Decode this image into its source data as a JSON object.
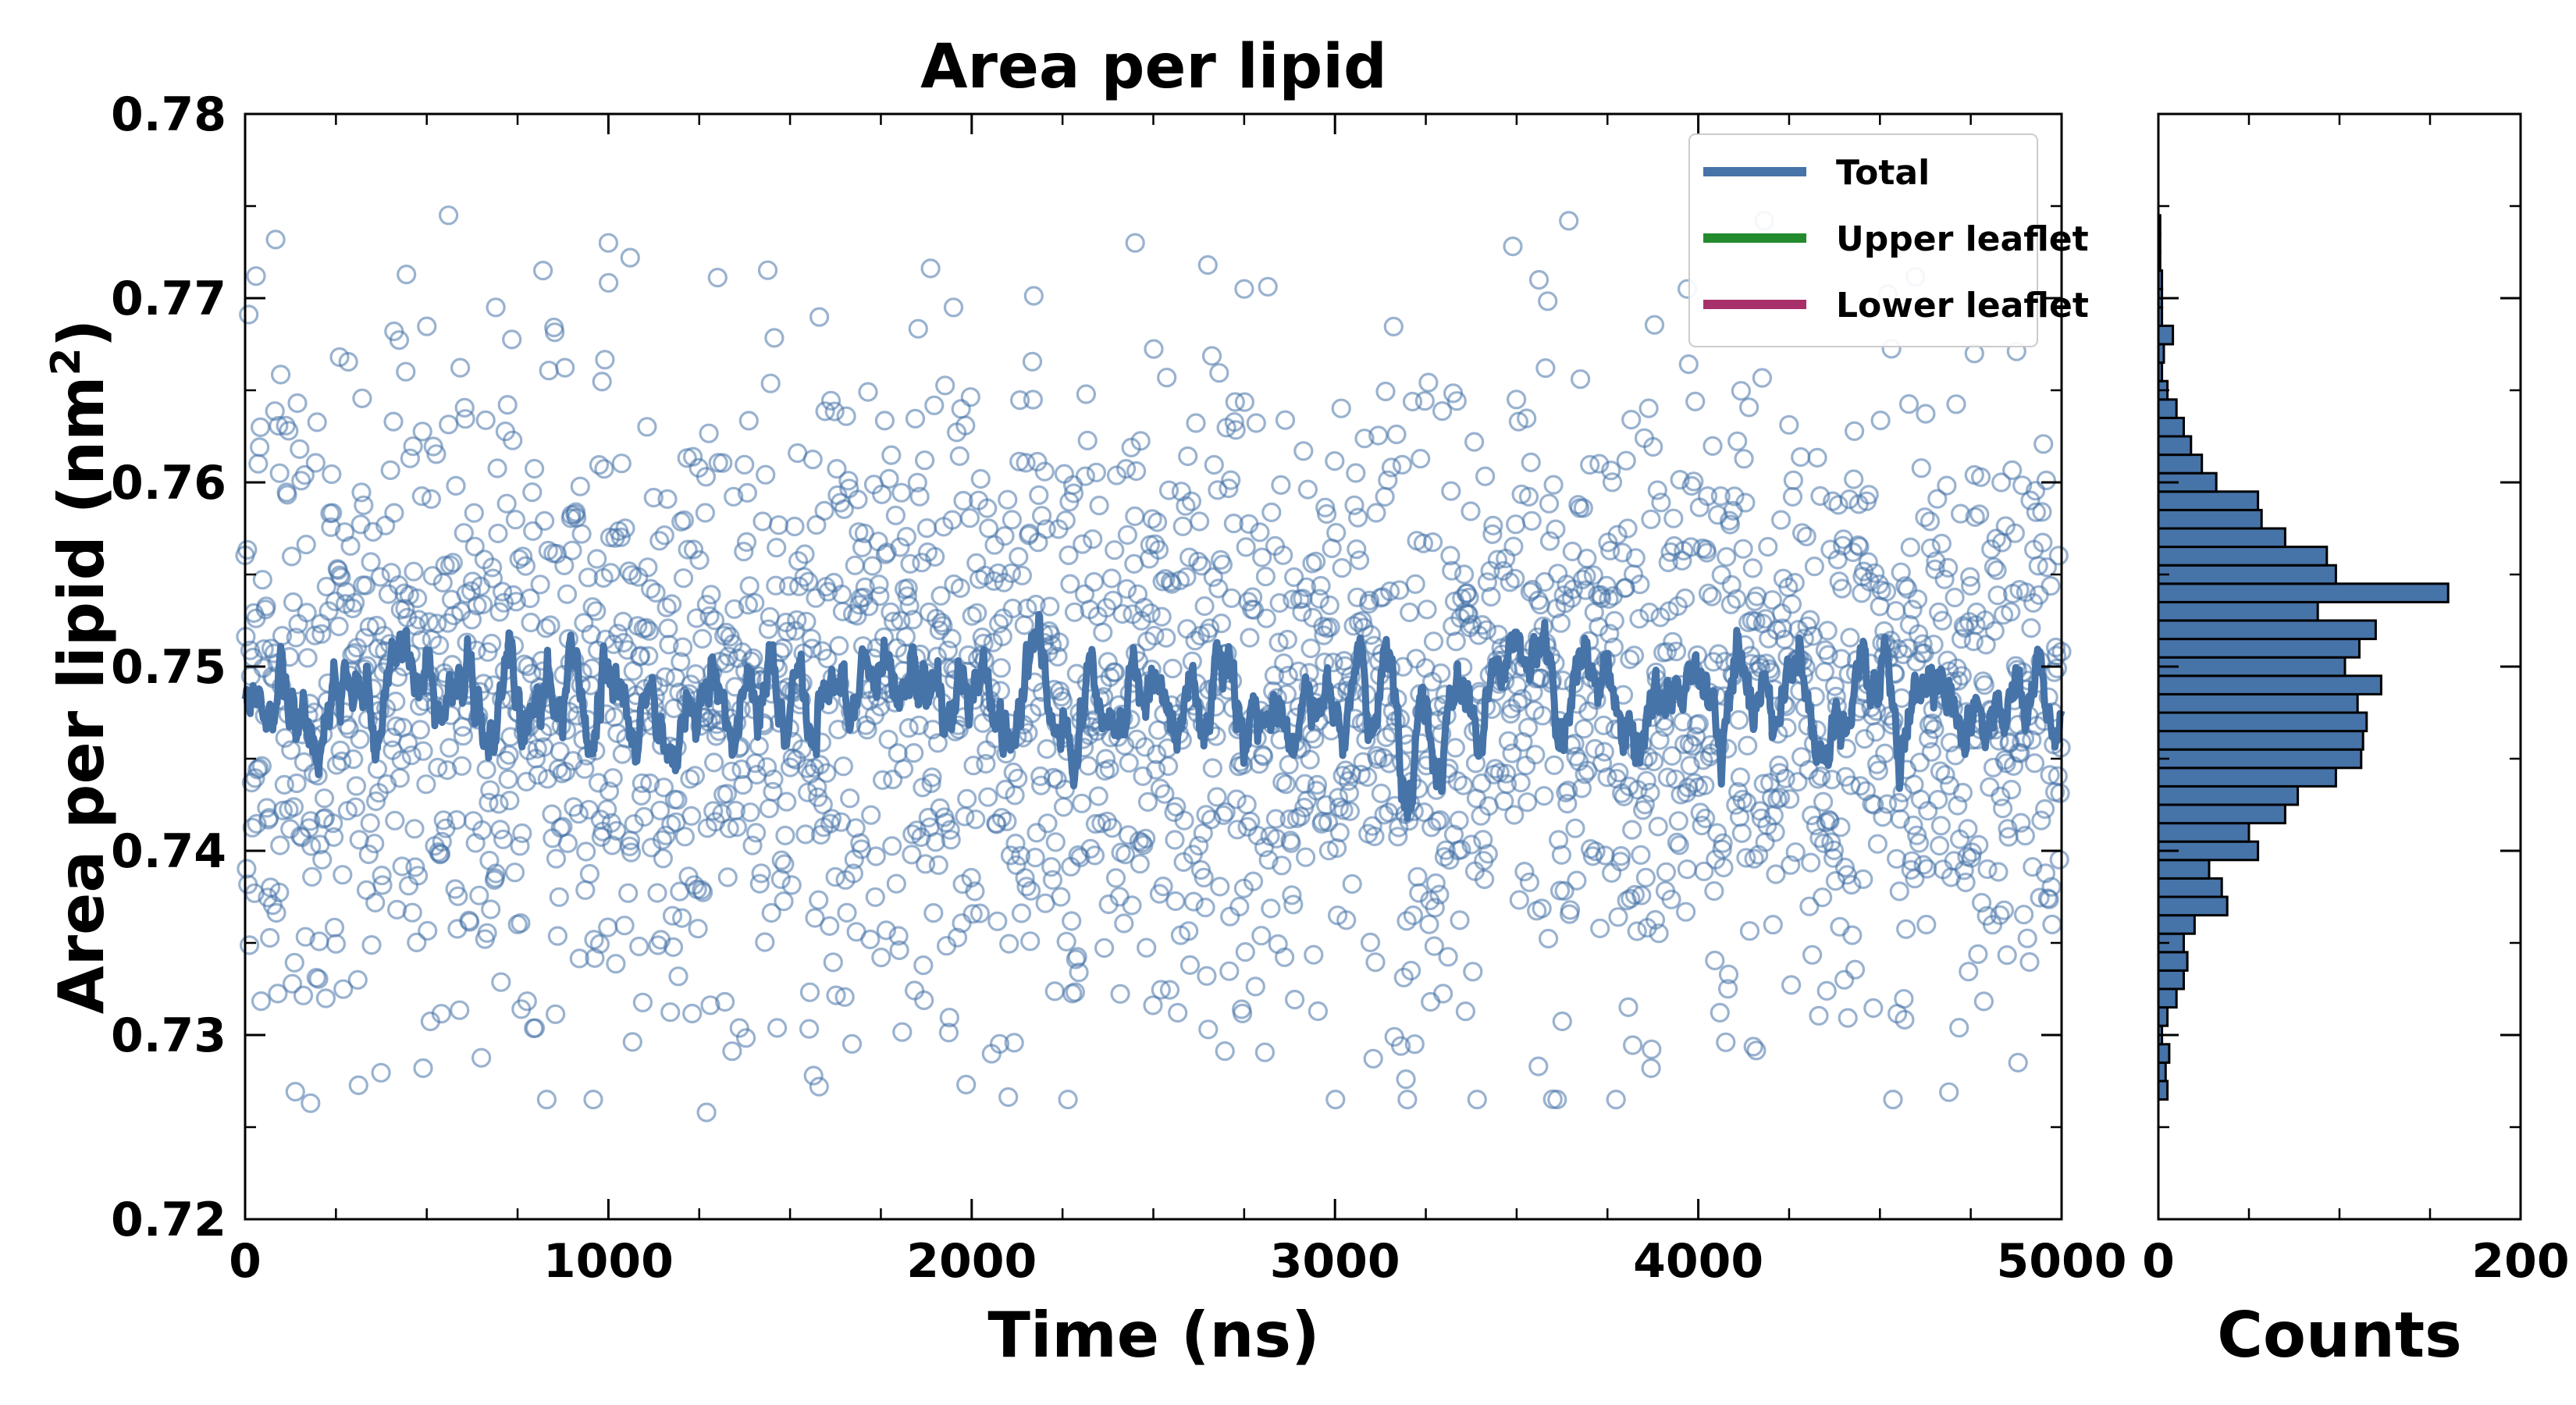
{
  "chart_data": {
    "type": "line",
    "title": "Area per lipid",
    "xlabel": "Time (ns)",
    "ylabel": "Area per lipid (nm",
    "ylabel_sup": "2",
    "ylabel_close": ")",
    "xlim": [
      0,
      5000
    ],
    "ylim": [
      0.72,
      0.78
    ],
    "x_ticks": [
      0,
      1000,
      2000,
      3000,
      4000,
      5000
    ],
    "y_ticks": [
      0.72,
      0.73,
      0.74,
      0.75,
      0.76,
      0.77,
      0.78
    ],
    "x_tick_labels": [
      "0",
      "1000",
      "2000",
      "3000",
      "4000",
      "5000"
    ],
    "y_tick_labels": [
      "0.72",
      "0.73",
      "0.74",
      "0.75",
      "0.76",
      "0.77",
      "0.78"
    ],
    "grid": false,
    "legend_position": "top-right",
    "series": [
      {
        "name": "Total",
        "color": "#4673a8",
        "style": "line + open circle markers",
        "mean": 0.7485,
        "sd_raw": 0.0085,
        "n_points": 2500,
        "x_range": [
          0,
          5000
        ]
      },
      {
        "name": "Upper leaflet",
        "color": "#238b2e",
        "style": "line",
        "values": []
      },
      {
        "name": "Lower leaflet",
        "color": "#a8306a",
        "style": "line",
        "values": []
      }
    ],
    "scatter_sample": [
      {
        "x": 30,
        "y": 0.7712
      },
      {
        "x": 95,
        "y": 0.7605
      },
      {
        "x": 120,
        "y": 0.7628
      },
      {
        "x": 180,
        "y": 0.7263
      },
      {
        "x": 260,
        "y": 0.7668
      },
      {
        "x": 410,
        "y": 0.7682
      },
      {
        "x": 560,
        "y": 0.7745
      },
      {
        "x": 690,
        "y": 0.7695
      },
      {
        "x": 820,
        "y": 0.7715
      },
      {
        "x": 1000,
        "y": 0.773
      },
      {
        "x": 1060,
        "y": 0.7722
      },
      {
        "x": 1270,
        "y": 0.7258
      },
      {
        "x": 1580,
        "y": 0.7272
      },
      {
        "x": 1950,
        "y": 0.7695
      },
      {
        "x": 2450,
        "y": 0.773
      },
      {
        "x": 2650,
        "y": 0.7718
      },
      {
        "x": 2750,
        "y": 0.7705
      },
      {
        "x": 3560,
        "y": 0.7283
      },
      {
        "x": 3870,
        "y": 0.7282
      },
      {
        "x": 3970,
        "y": 0.7705
      },
      {
        "x": 4690,
        "y": 0.7269
      },
      {
        "x": 4880,
        "y": 0.7285
      },
      {
        "x": 490,
        "y": 0.7282
      },
      {
        "x": 4760,
        "y": 0.767
      }
    ],
    "histogram": {
      "type": "bar",
      "orientation": "horizontal",
      "xlabel": "Counts",
      "xlim": [
        0,
        200
      ],
      "x_ticks": [
        0,
        200
      ],
      "x_tick_labels": [
        "0",
        "200"
      ],
      "ylim": [
        0.72,
        0.78
      ],
      "bin_edges": [
        0.7265,
        0.7275,
        0.7285,
        0.7295,
        0.7305,
        0.7315,
        0.7325,
        0.7335,
        0.7345,
        0.7355,
        0.7365,
        0.7375,
        0.7385,
        0.7395,
        0.7405,
        0.7415,
        0.7425,
        0.7435,
        0.7445,
        0.7455,
        0.7465,
        0.7475,
        0.7485,
        0.7495,
        0.7505,
        0.7515,
        0.7525,
        0.7535,
        0.7545,
        0.7555,
        0.7565,
        0.7575,
        0.7585,
        0.7595,
        0.7605,
        0.7615,
        0.7625,
        0.7635,
        0.7645,
        0.7655,
        0.7665,
        0.7675,
        0.7685,
        0.7695,
        0.7705,
        0.7715,
        0.7725,
        0.7735,
        0.7745
      ],
      "counts": [
        5,
        4,
        6,
        2,
        5,
        10,
        14,
        16,
        14,
        20,
        38,
        35,
        28,
        55,
        50,
        70,
        77,
        98,
        112,
        113,
        115,
        110,
        123,
        103,
        111,
        120,
        88,
        160,
        98,
        93,
        70,
        57,
        55,
        32,
        24,
        18,
        14,
        10,
        5,
        2,
        3,
        8,
        2,
        2,
        2,
        1,
        1,
        1
      ]
    }
  }
}
